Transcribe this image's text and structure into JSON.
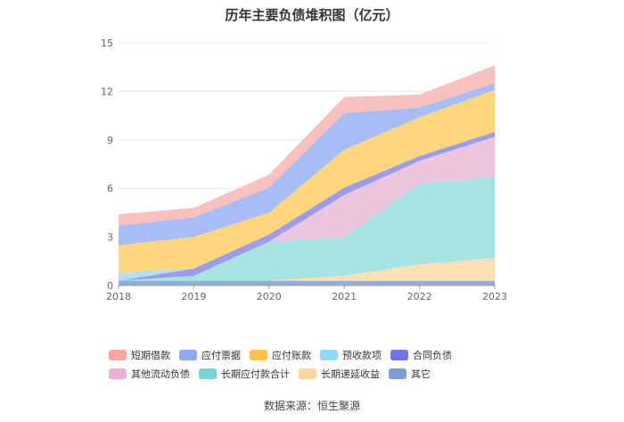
{
  "title": "历年主要负债堆积图（亿元）",
  "source": "数据来源：恒生聚源",
  "chart_data": {
    "type": "area",
    "stacked": true,
    "title": "历年主要负债堆积图（亿元）",
    "x": [
      "2018",
      "2019",
      "2020",
      "2021",
      "2022",
      "2023"
    ],
    "y_ticks": [
      "0",
      "3",
      "6",
      "9",
      "12",
      "15"
    ],
    "ylim": [
      0,
      15
    ],
    "grid": true,
    "legend_position": "bottom",
    "series": [
      {
        "name": "其它",
        "color": "#8fafd8",
        "values": [
          0.3,
          0.3,
          0.3,
          0.3,
          0.3,
          0.3
        ]
      },
      {
        "name": "长期递延收益",
        "color": "#fbe0b4",
        "values": [
          0.0,
          0.0,
          0.0,
          0.3,
          1.0,
          1.4
        ]
      },
      {
        "name": "长期应付款合计",
        "color": "#a7e3e0",
        "values": [
          0.0,
          0.3,
          2.4,
          2.4,
          5.0,
          5.0
        ]
      },
      {
        "name": "其他流动负债",
        "color": "#ecc6df",
        "values": [
          0.0,
          0.0,
          0.0,
          2.6,
          1.4,
          2.5
        ]
      },
      {
        "name": "合同负债",
        "color": "#9b9bef",
        "values": [
          0.0,
          0.45,
          0.45,
          0.45,
          0.3,
          0.3
        ]
      },
      {
        "name": "预收款项",
        "color": "#aee0f6",
        "values": [
          0.5,
          0.0,
          0.0,
          0.0,
          0.0,
          0.0
        ]
      },
      {
        "name": "应付账款",
        "color": "#fdd67d",
        "values": [
          1.7,
          1.95,
          1.35,
          2.35,
          2.4,
          2.6
        ]
      },
      {
        "name": "应付票据",
        "color": "#a7bdf7",
        "values": [
          1.2,
          1.2,
          1.55,
          2.25,
          0.6,
          0.4
        ]
      },
      {
        "name": "短期借款",
        "color": "#f8c1bd",
        "values": [
          0.7,
          0.6,
          0.8,
          1.0,
          0.8,
          1.1
        ]
      }
    ]
  },
  "legend": [
    {
      "label": "短期借款",
      "color": "#f9a69f"
    },
    {
      "label": "应付票据",
      "color": "#8ea9f5"
    },
    {
      "label": "应付账款",
      "color": "#fcc446"
    },
    {
      "label": "预收款项",
      "color": "#90d8f5"
    },
    {
      "label": "合同负债",
      "color": "#7072ea"
    },
    {
      "label": "其他流动负债",
      "color": "#e6b0d5"
    },
    {
      "label": "长期应付款合计",
      "color": "#72d6d1"
    },
    {
      "label": "长期递延收益",
      "color": "#fbd69e"
    },
    {
      "label": "其它",
      "color": "#7f9ed6"
    }
  ]
}
